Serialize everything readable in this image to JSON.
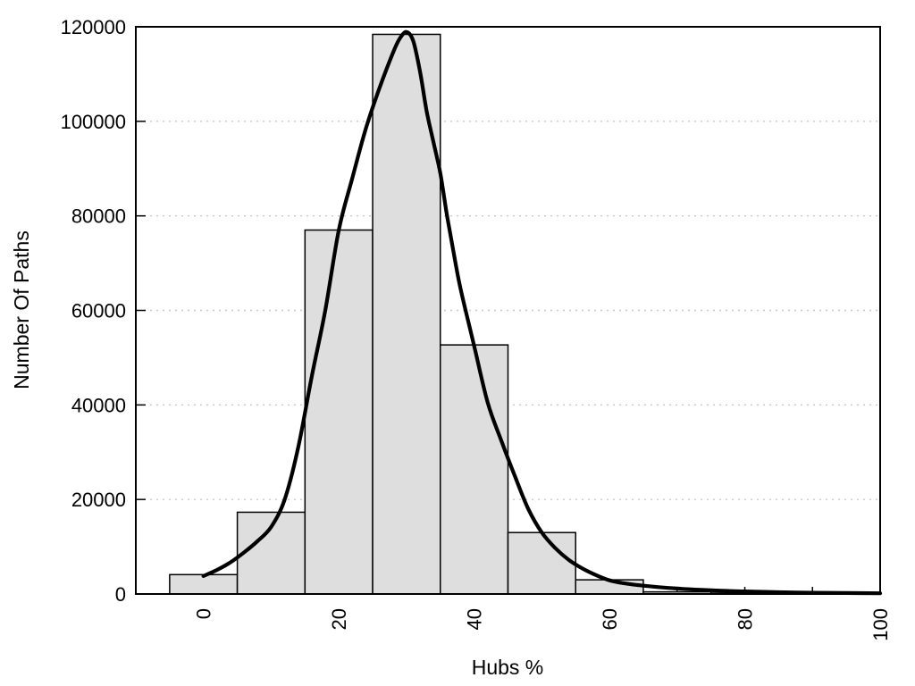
{
  "figure": {
    "background": "#ffffff",
    "text_color": "#000000",
    "border_color": "#000000",
    "grid_color": "#c8c8c8"
  },
  "chart_data": {
    "type": "bar",
    "subtype": "histogram-with-fitted-curve",
    "title": "",
    "xlabel": "Hubs %",
    "ylabel": "Number Of Paths",
    "xlim": [
      -10,
      100
    ],
    "ylim": [
      0,
      120000
    ],
    "grid": "horizontal-dotted",
    "legend": "none",
    "x_ticks": {
      "values": [
        0,
        20,
        40,
        60,
        80,
        100
      ],
      "labels": [
        "0",
        "20",
        "40",
        "60",
        "80",
        "100"
      ],
      "minor_step": 10,
      "label_rotation_deg": -90
    },
    "y_ticks": {
      "values": [
        0,
        20000,
        40000,
        60000,
        80000,
        100000,
        120000
      ],
      "labels": [
        "0",
        "20000",
        "40000",
        "60000",
        "80000",
        "100000",
        "120000"
      ]
    },
    "bars": {
      "bin_width": 10,
      "bin_edges": [
        -5,
        5,
        15,
        25,
        35,
        45,
        55,
        65,
        75,
        85
      ],
      "bin_centers": [
        0,
        10,
        20,
        30,
        40,
        50,
        60,
        70,
        80
      ],
      "values": [
        4100,
        17300,
        77000,
        118400,
        52700,
        13000,
        3000,
        450,
        200
      ],
      "fill": "#dedede",
      "stroke": "#000000"
    },
    "curve": {
      "name": "fitted-distribution-curve",
      "color": "#000000",
      "points": [
        [
          0,
          3800
        ],
        [
          2,
          5100
        ],
        [
          4,
          6700
        ],
        [
          6,
          8800
        ],
        [
          8,
          11200
        ],
        [
          10,
          14200
        ],
        [
          12,
          20000
        ],
        [
          14,
          31000
        ],
        [
          16,
          46000
        ],
        [
          18,
          60000
        ],
        [
          20,
          77000
        ],
        [
          22,
          88000
        ],
        [
          24,
          98500
        ],
        [
          26,
          107000
        ],
        [
          28,
          114500
        ],
        [
          29,
          117500
        ],
        [
          30,
          118900
        ],
        [
          31,
          117000
        ],
        [
          32,
          110500
        ],
        [
          33,
          102000
        ],
        [
          34,
          95500
        ],
        [
          35,
          89000
        ],
        [
          36,
          80000
        ],
        [
          37,
          72000
        ],
        [
          38,
          64500
        ],
        [
          40,
          52500
        ],
        [
          42,
          40500
        ],
        [
          44,
          32500
        ],
        [
          46,
          25000
        ],
        [
          48,
          18000
        ],
        [
          50,
          13000
        ],
        [
          52,
          9700
        ],
        [
          54,
          7200
        ],
        [
          56,
          5400
        ],
        [
          58,
          4000
        ],
        [
          60,
          2900
        ],
        [
          62,
          2300
        ],
        [
          65,
          1750
        ],
        [
          70,
          1150
        ],
        [
          75,
          800
        ],
        [
          80,
          540
        ],
        [
          85,
          380
        ],
        [
          90,
          270
        ],
        [
          95,
          200
        ],
        [
          100,
          160
        ]
      ]
    }
  }
}
